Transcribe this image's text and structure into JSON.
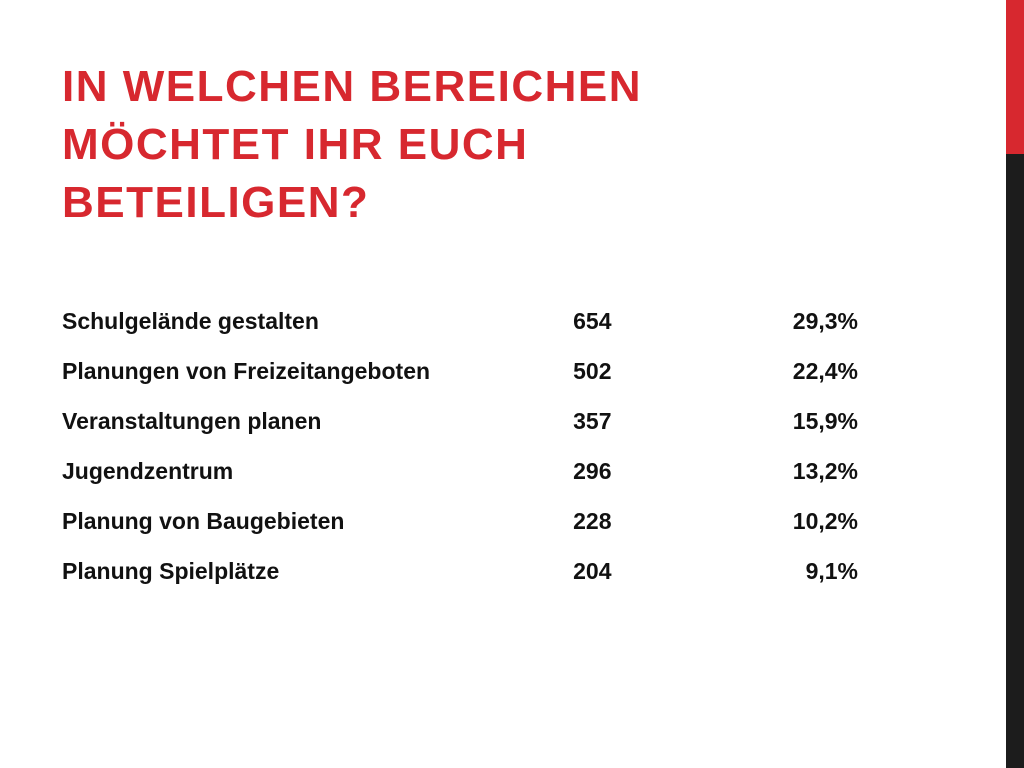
{
  "slide": {
    "title_lines": [
      "In welchen Bereichen",
      "möchtet ihr euch",
      "beteiligen?"
    ],
    "rows": [
      {
        "label": "Schulgelände gestalten",
        "count": "654",
        "percent": "29,3%"
      },
      {
        "label": "Planungen von Freizeitangeboten",
        "count": "502",
        "percent": "22,4%"
      },
      {
        "label": "Veranstaltungen planen",
        "count": "357",
        "percent": "15,9%"
      },
      {
        "label": "Jugendzentrum",
        "count": "296",
        "percent": "13,2%"
      },
      {
        "label": "Planung von Baugebieten",
        "count": "228",
        "percent": "10,2%"
      },
      {
        "label": "Planung Spielplätze",
        "count": "204",
        "percent": "9,1%"
      }
    ]
  },
  "colors": {
    "accent": "#d7282f",
    "edge_bar": "#1c1c1c",
    "text": "#111111",
    "background": "#ffffff"
  }
}
